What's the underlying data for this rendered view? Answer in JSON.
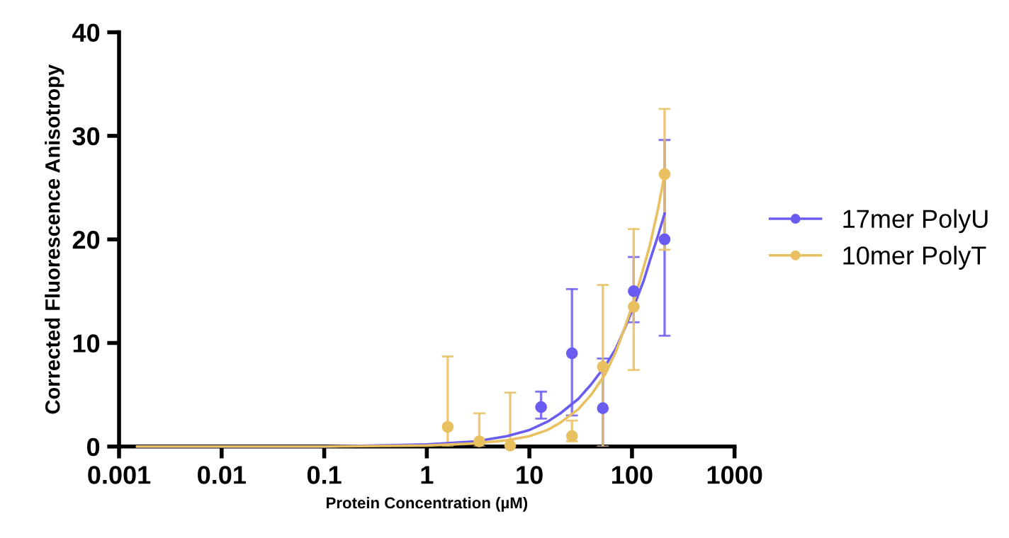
{
  "chart_data": {
    "type": "scatter",
    "xlabel": "Protein Concentration (µM)",
    "ylabel": "Corrected Fluorescence Anisotropy",
    "log": "x",
    "xlim": [
      0.001,
      1000
    ],
    "xticks": [
      0.001,
      0.01,
      0.1,
      1,
      10,
      100,
      1000
    ],
    "ylim": [
      0,
      40
    ],
    "yticks": [
      0,
      10,
      20,
      30,
      40
    ],
    "grid": false,
    "legend": "right",
    "series": [
      {
        "name": "17mer PolyU",
        "marker": "circle",
        "color": "#6a5cf0",
        "x": [
          13,
          26,
          52,
          104,
          208
        ],
        "values": [
          3.8,
          9,
          3.7,
          15,
          20
        ],
        "errors": [
          [
            2.7,
            5.3
          ],
          [
            3,
            15.2
          ],
          [
            0,
            8.5
          ],
          [
            12,
            18.3
          ],
          [
            10.7,
            29.6
          ]
        ]
      },
      {
        "name": "10mer PolyT",
        "marker": "circle",
        "color": "#e8c060",
        "x": [
          1.6,
          3.25,
          6.5,
          26,
          52,
          104,
          208
        ],
        "values": [
          1.9,
          0.5,
          0.1,
          1,
          7.7,
          13.5,
          26.3
        ],
        "errors": [
          [
            0,
            8.7
          ],
          [
            0,
            3.2
          ],
          [
            0,
            5.2
          ],
          [
            0.5,
            2.5
          ],
          [
            0,
            15.6
          ],
          [
            7.4,
            21
          ],
          [
            19,
            32.6
          ]
        ]
      },
      {
        "type": "line",
        "marker": "none",
        "color": "#6a5cf0",
        "x": [
          0.0015,
          0.01,
          0.1,
          1,
          3,
          6,
          10,
          15,
          20,
          30,
          40,
          55,
          70,
          85,
          104,
          130,
          150,
          180,
          208
        ],
        "values": [
          0,
          0,
          0,
          0.2,
          0.5,
          1,
          1.6,
          2.4,
          3.2,
          4.6,
          6,
          7.8,
          9.5,
          11.4,
          13.5,
          16,
          18,
          20.4,
          22.5
        ]
      },
      {
        "type": "line",
        "marker": "none",
        "color": "#e8c060",
        "x": [
          0.0015,
          0.01,
          0.1,
          1,
          3,
          6,
          10,
          15,
          20,
          30,
          40,
          55,
          70,
          85,
          104,
          130,
          150,
          180,
          208
        ],
        "values": [
          0,
          0,
          0,
          0.1,
          0.3,
          0.6,
          1,
          1.6,
          2.3,
          3.6,
          5,
          7,
          9.2,
          11.5,
          14,
          17.3,
          19.5,
          23,
          26.3
        ]
      }
    ]
  }
}
